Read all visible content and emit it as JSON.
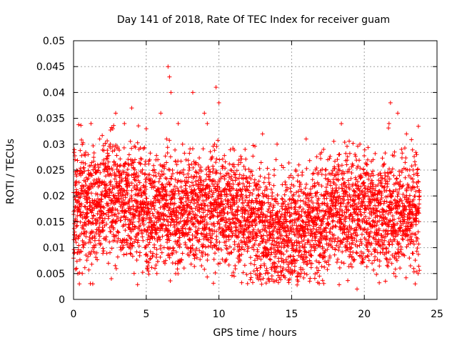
{
  "chart_data": {
    "type": "scatter",
    "title": "Day 141 of 2018, Rate Of TEC Index for receiver guam",
    "xlabel": "GPS time / hours",
    "ylabel": "ROTI / TECUs",
    "xlim": [
      0,
      25
    ],
    "ylim": [
      0,
      0.05
    ],
    "x_ticks": [
      0,
      5,
      10,
      15,
      20,
      25
    ],
    "y_ticks": [
      0,
      0.005,
      0.01,
      0.015,
      0.02,
      0.025,
      0.03,
      0.035,
      0.04,
      0.045,
      0.05
    ],
    "grid": true,
    "marker": "+",
    "marker_color": "#ff0000",
    "data_x_range": [
      0,
      23.8
    ],
    "series": [
      {
        "name": "ROTI",
        "points": [
          [
            0.1,
            0.027
          ],
          [
            0.2,
            0.006
          ],
          [
            0.3,
            0.009
          ],
          [
            0.4,
            0.003
          ],
          [
            0.5,
            0.024
          ],
          [
            0.6,
            0.005
          ],
          [
            0.8,
            0.021
          ],
          [
            0.9,
            0.013
          ],
          [
            1.0,
            0.028
          ],
          [
            1.1,
            0.018
          ],
          [
            1.2,
            0.034
          ],
          [
            1.3,
            0.012
          ],
          [
            1.5,
            0.026
          ],
          [
            1.6,
            0.009
          ],
          [
            1.8,
            0.031
          ],
          [
            2.0,
            0.015
          ],
          [
            2.2,
            0.022
          ],
          [
            2.4,
            0.007
          ],
          [
            2.6,
            0.004
          ],
          [
            2.7,
            0.033
          ],
          [
            2.9,
            0.036
          ],
          [
            3.0,
            0.019
          ],
          [
            3.3,
            0.011
          ],
          [
            3.5,
            0.034
          ],
          [
            3.8,
            0.024
          ],
          [
            4.0,
            0.037
          ],
          [
            4.2,
            0.014
          ],
          [
            4.5,
            0.029
          ],
          [
            4.8,
            0.022
          ],
          [
            5.0,
            0.033
          ],
          [
            5.2,
            0.017
          ],
          [
            5.4,
            0.012
          ],
          [
            5.6,
            0.006
          ],
          [
            5.8,
            0.027
          ],
          [
            6.0,
            0.036
          ],
          [
            6.2,
            0.02
          ],
          [
            6.4,
            0.031
          ],
          [
            6.5,
            0.045
          ],
          [
            6.6,
            0.043
          ],
          [
            6.7,
            0.04
          ],
          [
            6.8,
            0.025
          ],
          [
            7.0,
            0.007
          ],
          [
            7.2,
            0.034
          ],
          [
            7.5,
            0.03
          ],
          [
            7.7,
            0.022
          ],
          [
            8.0,
            0.018
          ],
          [
            8.2,
            0.04
          ],
          [
            8.4,
            0.014
          ],
          [
            8.6,
            0.026
          ],
          [
            8.8,
            0.009
          ],
          [
            9.0,
            0.036
          ],
          [
            9.2,
            0.034
          ],
          [
            9.5,
            0.021
          ],
          [
            9.7,
            0.03
          ],
          [
            9.8,
            0.041
          ],
          [
            10.0,
            0.038
          ],
          [
            10.2,
            0.019
          ],
          [
            10.5,
            0.012
          ],
          [
            10.8,
            0.025
          ],
          [
            11.0,
            0.02
          ],
          [
            11.3,
            0.008
          ],
          [
            11.6,
            0.016
          ],
          [
            11.8,
            0.029
          ],
          [
            12.0,
            0.013
          ],
          [
            12.3,
            0.024
          ],
          [
            12.6,
            0.006
          ],
          [
            12.8,
            0.019
          ],
          [
            13.0,
            0.032
          ],
          [
            13.2,
            0.005
          ],
          [
            13.5,
            0.018
          ],
          [
            13.8,
            0.024
          ],
          [
            14.0,
            0.03
          ],
          [
            14.3,
            0.009
          ],
          [
            14.6,
            0.021
          ],
          [
            14.9,
            0.015
          ],
          [
            15.2,
            0.011
          ],
          [
            15.5,
            0.026
          ],
          [
            15.8,
            0.019
          ],
          [
            16.0,
            0.031
          ],
          [
            16.3,
            0.007
          ],
          [
            16.6,
            0.022
          ],
          [
            16.9,
            0.013
          ],
          [
            17.2,
            0.029
          ],
          [
            17.5,
            0.017
          ],
          [
            17.8,
            0.01
          ],
          [
            18.0,
            0.024
          ],
          [
            18.3,
            0.015
          ],
          [
            18.6,
            0.007
          ],
          [
            18.9,
            0.023
          ],
          [
            19.2,
            0.018
          ],
          [
            19.5,
            0.002
          ],
          [
            19.7,
            0.03
          ],
          [
            20.0,
            0.022
          ],
          [
            20.3,
            0.011
          ],
          [
            20.6,
            0.027
          ],
          [
            20.9,
            0.016
          ],
          [
            21.1,
            0.009
          ],
          [
            21.4,
            0.021
          ],
          [
            21.7,
            0.034
          ],
          [
            21.8,
            0.038
          ],
          [
            22.0,
            0.014
          ],
          [
            22.3,
            0.036
          ],
          [
            22.6,
            0.025
          ],
          [
            22.9,
            0.032
          ],
          [
            23.1,
            0.008
          ],
          [
            23.3,
            0.019
          ],
          [
            23.5,
            0.003
          ],
          [
            23.6,
            0.028
          ],
          [
            23.7,
            0.005
          ],
          [
            23.8,
            0.02
          ]
        ]
      }
    ]
  }
}
